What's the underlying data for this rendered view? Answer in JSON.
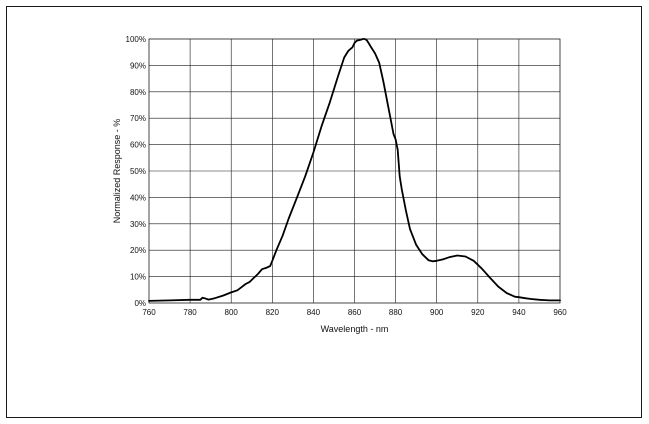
{
  "chart_data": {
    "type": "line",
    "title": "",
    "xlabel": "Wavelength - nm",
    "ylabel": "Normalized Response - %",
    "xlim": [
      760,
      960
    ],
    "ylim": [
      0,
      100
    ],
    "grid": true,
    "x_ticks": [
      "760",
      "780",
      "800",
      "820",
      "840",
      "860",
      "880",
      "900",
      "920",
      "940",
      "960"
    ],
    "y_ticks": [
      "0%",
      "10%",
      "20%",
      "30%",
      "40%",
      "50%",
      "60%",
      "70%",
      "80%",
      "90%",
      "100%"
    ],
    "series": [
      {
        "name": "",
        "x": [
          760,
          770,
          780,
          785,
          786,
          787,
          789,
          792,
          796,
          800,
          803,
          805,
          807,
          809,
          811,
          813,
          815,
          817,
          819,
          820,
          822,
          825,
          828,
          832,
          836,
          840,
          844,
          848,
          852,
          855,
          857,
          858,
          859,
          860,
          861,
          862,
          863,
          864,
          865,
          866,
          867,
          868,
          870,
          872,
          874,
          876,
          878,
          879,
          880,
          881,
          882,
          883,
          885,
          887,
          890,
          893,
          896,
          898,
          900,
          903,
          906,
          910,
          914,
          918,
          922,
          926,
          930,
          934,
          938,
          940,
          943,
          946,
          950,
          955,
          960
        ],
        "y": [
          0.8,
          1.0,
          1.2,
          1.2,
          2.0,
          1.8,
          1.3,
          1.8,
          2.8,
          4.0,
          4.8,
          6.0,
          7.2,
          8.0,
          9.5,
          11.0,
          12.8,
          13.3,
          14.0,
          16.0,
          20.0,
          25.5,
          32.0,
          40.0,
          48.0,
          57.0,
          67.0,
          76.0,
          86.0,
          93.0,
          95.5,
          96.2,
          96.8,
          98.5,
          99.3,
          99.5,
          99.7,
          100.0,
          100.0,
          99.5,
          98.3,
          97.0,
          94.5,
          91.0,
          84.0,
          76.0,
          68.0,
          64.0,
          62.0,
          58.0,
          48.0,
          43.0,
          35.0,
          28.0,
          22.0,
          18.5,
          16.2,
          15.8,
          16.0,
          16.5,
          17.3,
          18.0,
          17.6,
          16.0,
          13.0,
          9.5,
          6.2,
          3.8,
          2.4,
          2.2,
          1.8,
          1.5,
          1.2,
          1.0,
          1.0
        ]
      }
    ]
  }
}
